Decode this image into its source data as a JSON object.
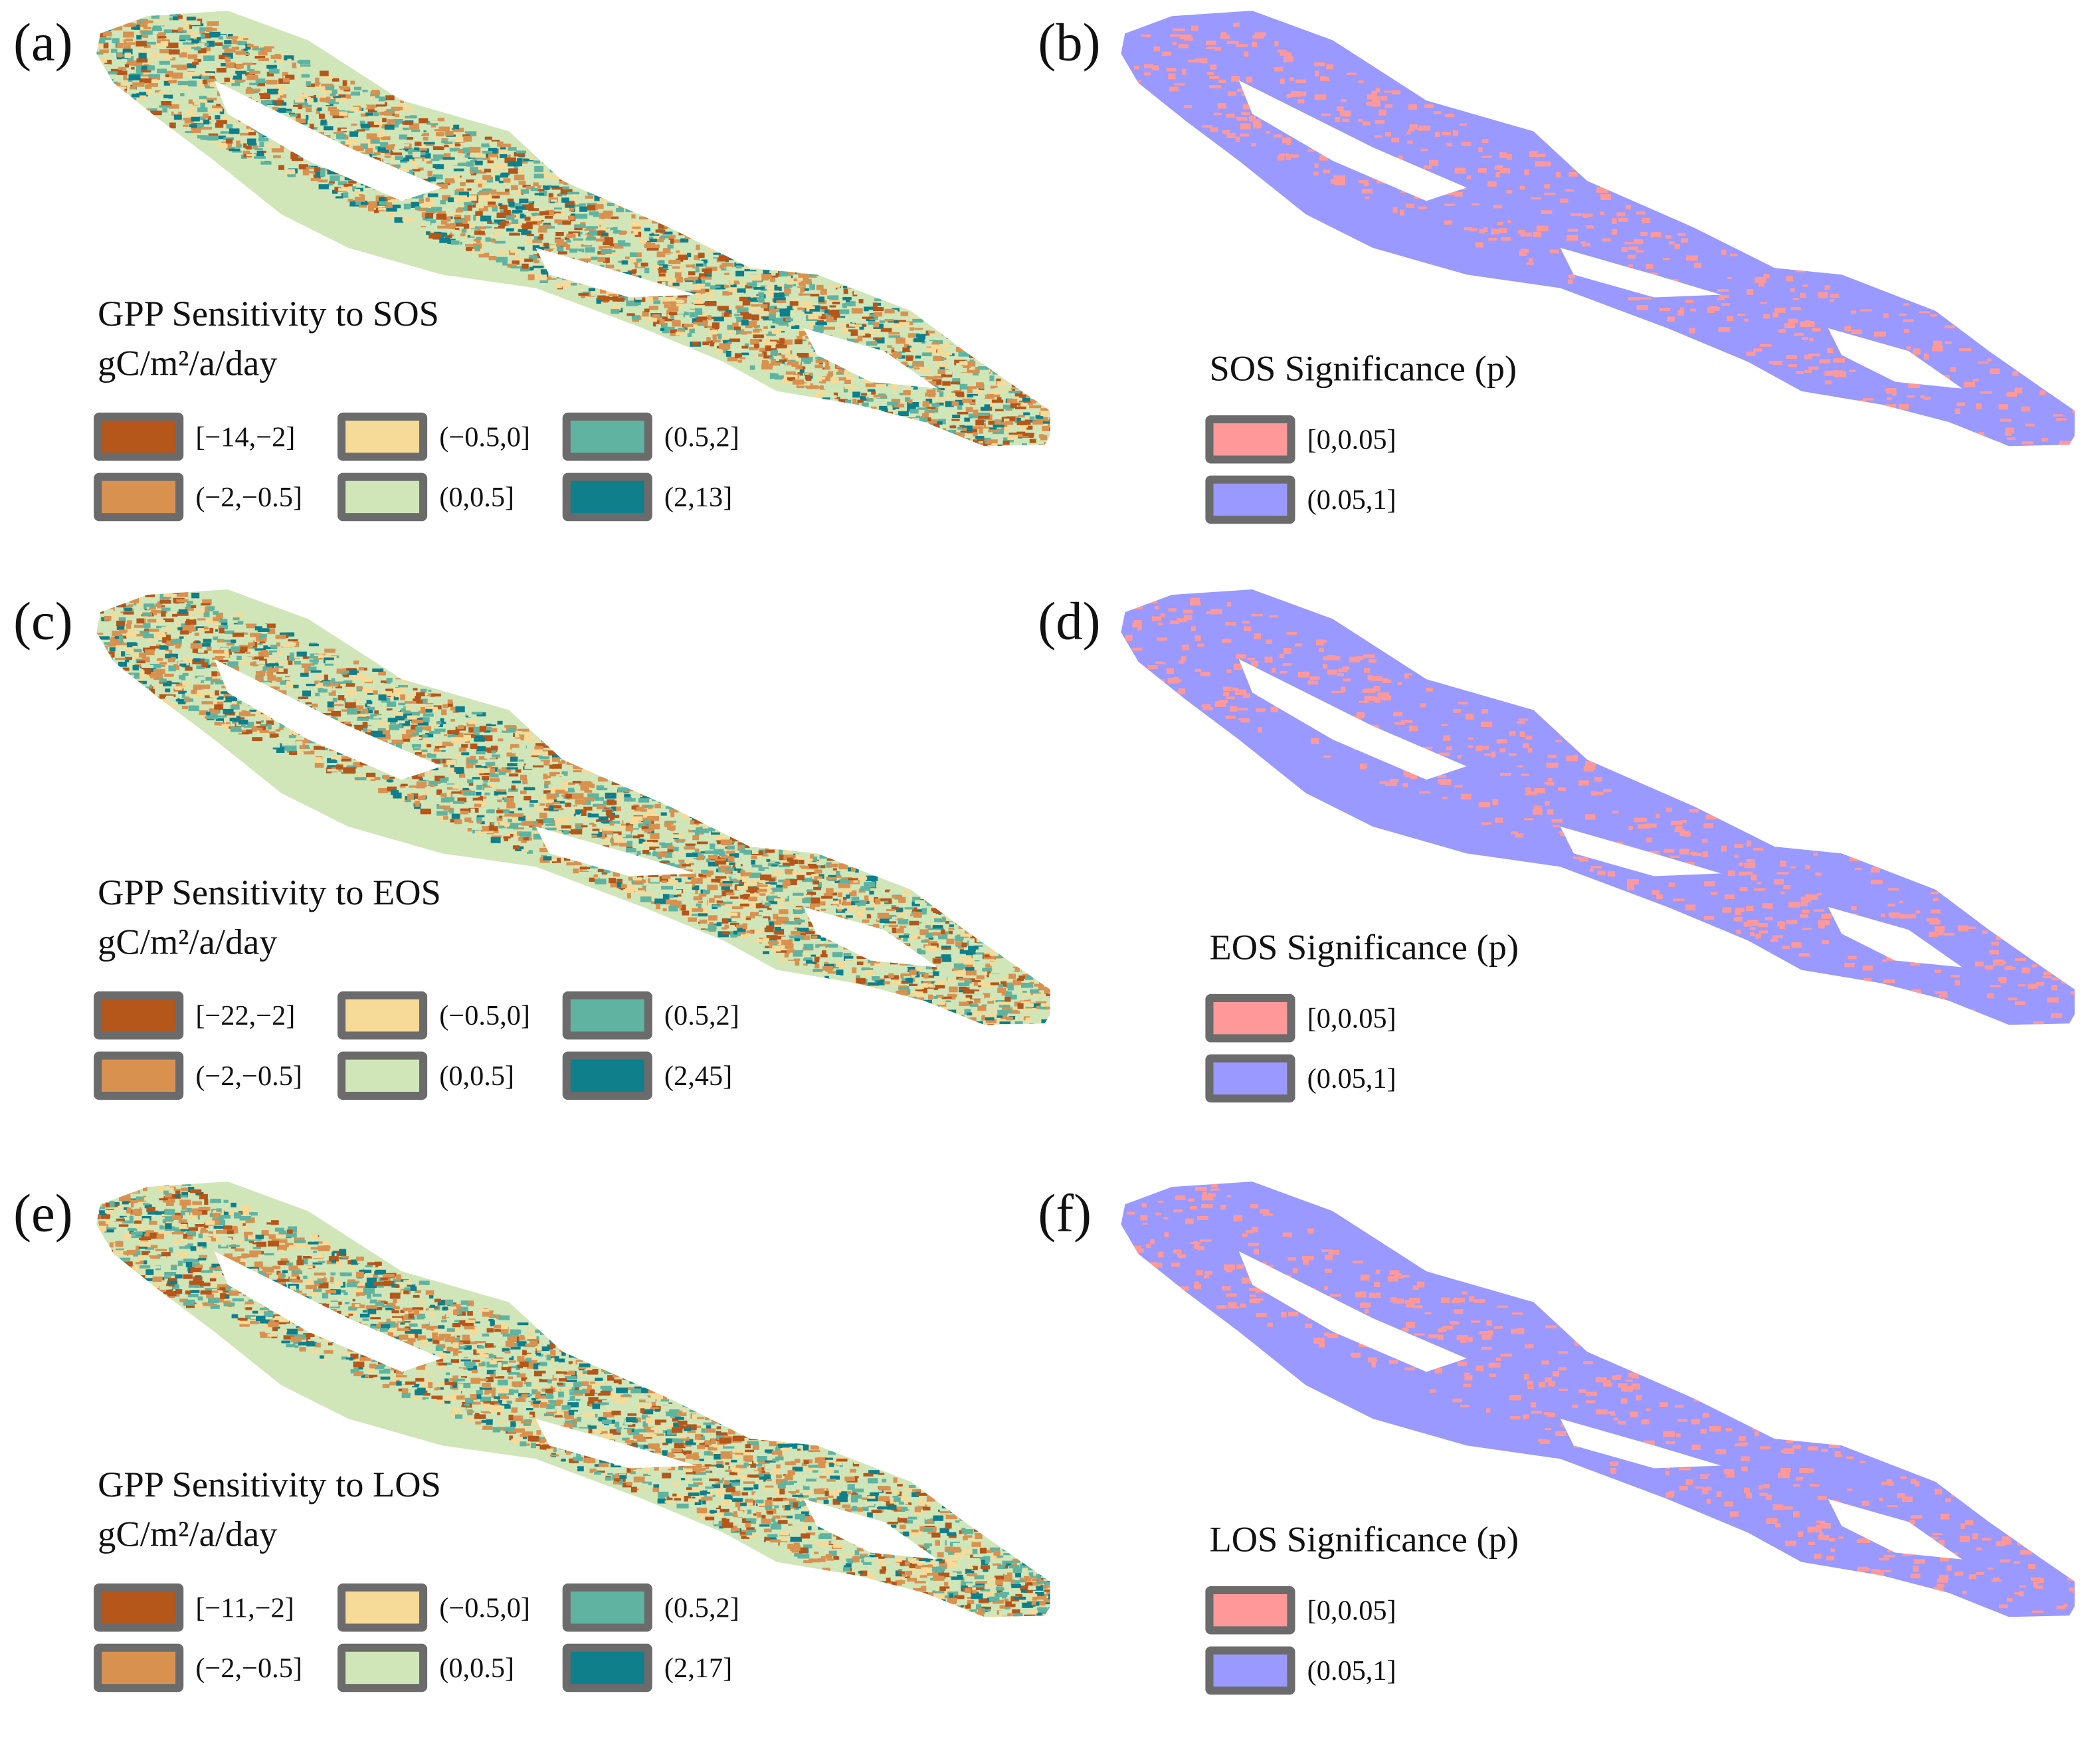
{
  "panels": [
    {
      "label": "(a)",
      "kind": "sensitivity",
      "title": "GPP Sensitivity to SOS",
      "units": "gC/m²/a/day",
      "legend": [
        {
          "label": "[−14,−2]",
          "color": "#b5561a"
        },
        {
          "label": "(−2,−0.5]",
          "color": "#d9914f"
        },
        {
          "label": "(−0.5,0]",
          "color": "#f6da98"
        },
        {
          "label": "(0,0.5]",
          "color": "#d0e6b9"
        },
        {
          "label": "(0.5,2]",
          "color": "#5fb3a1"
        },
        {
          "label": "(2,13]",
          "color": "#0e7f8b"
        }
      ]
    },
    {
      "label": "(b)",
      "kind": "significance",
      "title": "SOS Significance (p)",
      "legend": [
        {
          "label": "[0,0.05]",
          "color": "#ff9999"
        },
        {
          "label": "(0.05,1]",
          "color": "#9999ff"
        }
      ]
    },
    {
      "label": "(c)",
      "kind": "sensitivity",
      "title": "GPP Sensitivity to EOS",
      "units": "gC/m²/a/day",
      "legend": [
        {
          "label": "[−22,−2]",
          "color": "#b5561a"
        },
        {
          "label": "(−2,−0.5]",
          "color": "#d9914f"
        },
        {
          "label": "(−0.5,0]",
          "color": "#f6da98"
        },
        {
          "label": "(0,0.5]",
          "color": "#d0e6b9"
        },
        {
          "label": "(0.5,2]",
          "color": "#5fb3a1"
        },
        {
          "label": "(2,45]",
          "color": "#0e7f8b"
        }
      ]
    },
    {
      "label": "(d)",
      "kind": "significance",
      "title": "EOS Significance (p)",
      "legend": [
        {
          "label": "[0,0.05]",
          "color": "#ff9999"
        },
        {
          "label": "(0.05,1]",
          "color": "#9999ff"
        }
      ]
    },
    {
      "label": "(e)",
      "kind": "sensitivity",
      "title": "GPP Sensitivity to LOS",
      "units": "gC/m²/a/day",
      "legend": [
        {
          "label": "[−11,−2]",
          "color": "#b5561a"
        },
        {
          "label": "(−2,−0.5]",
          "color": "#d9914f"
        },
        {
          "label": "(−0.5,0]",
          "color": "#f6da98"
        },
        {
          "label": "(0,0.5]",
          "color": "#d0e6b9"
        },
        {
          "label": "(0.5,2]",
          "color": "#5fb3a1"
        },
        {
          "label": "(2,17]",
          "color": "#0e7f8b"
        }
      ]
    },
    {
      "label": "(f)",
      "kind": "significance",
      "title": "LOS Significance (p)",
      "legend": [
        {
          "label": "[0,0.05]",
          "color": "#ff9999"
        },
        {
          "label": "(0.05,1]",
          "color": "#9999ff"
        }
      ]
    }
  ]
}
